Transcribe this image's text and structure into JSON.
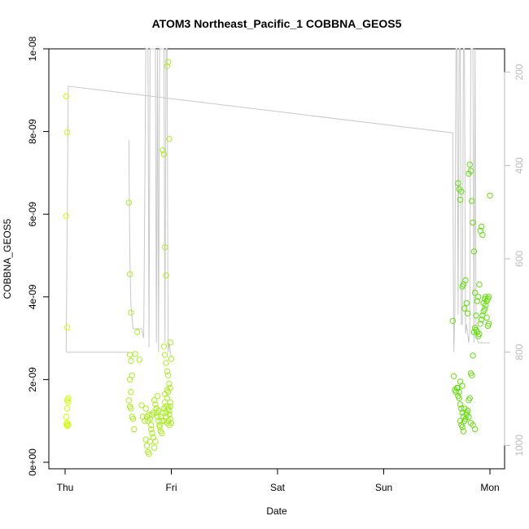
{
  "chart_data": {
    "type": "scatter",
    "title": "ATOM3 Northeast_Pacific_1 COBBNA_GEOS5",
    "xlabel": "Date",
    "ylabel": "COBBNA_GEOS5",
    "x_ticks": [
      "Thu",
      "Fri",
      "Sat",
      "Sun",
      "Mon"
    ],
    "xlim": [
      0,
      4.05
    ],
    "ylim": [
      0,
      1e-08
    ],
    "y_ticks": [
      "0e+00",
      "2e-09",
      "4e-09",
      "6e-09",
      "8e-09",
      "1e-08"
    ],
    "y_tick_values": [
      0,
      2e-09,
      4e-09,
      6e-09,
      8e-09,
      1e-08
    ],
    "right_axis": {
      "ticks": [
        "200",
        "400",
        "600",
        "800",
        "1000"
      ],
      "tick_values": [
        200,
        400,
        600,
        800,
        1000
      ],
      "ylim": [
        1050,
        150
      ],
      "color": "#bdbdbd"
    },
    "line_color": "#c8c8c8",
    "point_colors": [
      "#ccff00",
      "#aaee22",
      "#66dd11"
    ],
    "series": [
      {
        "kind": "points",
        "x": [
          0.01,
          0.02,
          0.01,
          0.02,
          0.03,
          0.02,
          0.03,
          0.02,
          0.01,
          0.02,
          0.03,
          0.02,
          0.01,
          0.6,
          0.61,
          0.62,
          0.61,
          0.62,
          0.63,
          0.61,
          0.62,
          0.6,
          0.61,
          0.62,
          0.63,
          0.64,
          0.65,
          0.66,
          0.68,
          0.7,
          0.72,
          0.73,
          0.75,
          0.76,
          0.77,
          0.78,
          0.79,
          0.8,
          0.81,
          0.82,
          0.83,
          0.84,
          0.85,
          0.86,
          0.87,
          0.88,
          0.89,
          0.9,
          0.91,
          0.92,
          0.93,
          0.94,
          0.95,
          0.96,
          0.97,
          0.98,
          0.99,
          1.0,
          0.93,
          0.94,
          0.95,
          0.96,
          0.97,
          0.98,
          0.99,
          0.92,
          0.93,
          0.94,
          0.95,
          0.96,
          0.97,
          0.98,
          0.99,
          1.0,
          0.93,
          0.95,
          0.97,
          0.99,
          0.96,
          0.98,
          0.94,
          0.96,
          0.95,
          0.97,
          0.98,
          0.99,
          0.91,
          0.9,
          0.89,
          0.88,
          0.87,
          0.86,
          0.85,
          0.84,
          0.83,
          0.82,
          0.81,
          0.8,
          0.79,
          0.78,
          0.77,
          0.76
        ],
        "y": [
          8.85e-09,
          7.98e-09,
          5.96e-09,
          3.26e-09,
          1.55e-09,
          1.5e-09,
          1.45e-09,
          1.3e-09,
          1.1e-09,
          9.5e-10,
          9e-10,
          8.8e-10,
          9.2e-10,
          6.28e-09,
          4.55e-09,
          3.62e-09,
          2.6e-09,
          2.45e-09,
          2.1e-09,
          2e-09,
          1.7e-09,
          1.5e-09,
          1.35e-09,
          1.3e-09,
          1.1e-09,
          1.05e-09,
          8e-10,
          2.62e-09,
          3.15e-09,
          2.48e-09,
          1.38e-09,
          1.1e-09,
          1e-09,
          5.5e-10,
          4e-10,
          2.5e-10,
          2e-10,
          5e-10,
          8e-10,
          1.15e-09,
          1.2e-09,
          1.5e-09,
          1.4e-09,
          1.3e-09,
          1.6e-09,
          1.25e-09,
          9e-10,
          1.1e-09,
          1e-09,
          1.2e-09,
          1.3e-09,
          1.45e-09,
          1.35e-09,
          1.55e-09,
          1.3e-09,
          1.15e-09,
          1.05e-09,
          9.5e-10,
          2.8e-09,
          2.6e-09,
          2.4e-09,
          2.2e-09,
          2.1e-09,
          1.9e-09,
          1.8e-09,
          7.55e-09,
          7.45e-09,
          5.2e-09,
          4.52e-09,
          9.58e-09,
          9.68e-09,
          7.82e-09,
          2.9e-09,
          2.5e-09,
          1e-09,
          1.1e-09,
          1.7e-09,
          1.45e-09,
          9.5e-10,
          9e-10,
          1.65e-09,
          1.75e-09,
          1.2e-09,
          1e-09,
          1.25e-09,
          1.35e-09,
          7e-10,
          7.5e-10,
          8.5e-10,
          1e-09,
          1.1e-09,
          1.2e-09,
          5e-10,
          3.5e-10,
          6e-10,
          7e-10,
          9e-10,
          1.05e-09,
          1.15e-09,
          1e-09,
          1.1e-09,
          1.3e-09
        ]
      },
      {
        "kind": "points",
        "x": [
          3.65,
          3.66,
          3.67,
          3.68,
          3.69,
          3.7,
          3.71,
          3.72,
          3.73,
          3.74,
          3.75,
          3.76,
          3.77,
          3.78,
          3.79,
          3.8,
          3.81,
          3.82,
          3.83,
          3.84,
          3.85,
          3.86,
          3.87,
          3.88,
          3.89,
          3.9,
          3.91,
          3.92,
          3.93,
          3.94,
          3.95,
          3.96,
          3.97,
          3.98,
          3.99,
          4.0,
          3.7,
          3.71,
          3.72,
          3.73,
          3.74,
          3.75,
          3.76,
          3.77,
          3.78,
          3.79,
          3.8,
          3.81,
          3.82,
          3.83,
          3.84,
          3.85,
          3.86,
          3.87,
          3.88,
          3.89,
          3.9,
          3.91,
          3.92,
          3.93,
          3.94,
          3.95,
          3.96,
          3.97,
          3.98,
          3.99,
          3.72,
          3.74,
          3.76,
          3.78,
          3.8,
          3.82,
          3.84,
          3.86,
          3.7,
          3.71,
          3.72,
          3.73,
          3.74,
          3.75
        ],
        "y": [
          3.42e-09,
          2.08e-09,
          1.75e-09,
          1.7e-09,
          1.8e-09,
          1.6e-09,
          1.55e-09,
          1.4e-09,
          1.3e-09,
          1.2e-09,
          1.1e-09,
          1e-09,
          1.05e-09,
          1.15e-09,
          1.25e-09,
          1.5e-09,
          1.55e-09,
          2.15e-09,
          2.1e-09,
          2.58e-09,
          3.15e-09,
          3.25e-09,
          3.55e-09,
          3.9e-09,
          4e-09,
          4.3e-09,
          5.6e-09,
          5.7e-09,
          5.5e-09,
          3.85e-09,
          3.95e-09,
          4e-09,
          3.5e-09,
          3.3e-09,
          3.35e-09,
          6.45e-09,
          6.75e-09,
          6.6e-09,
          6.35e-09,
          6.55e-09,
          4.25e-09,
          4.3e-09,
          3.72e-09,
          4.4e-09,
          3.85e-09,
          3.6e-09,
          6.98e-09,
          7.2e-09,
          7.05e-09,
          6.32e-09,
          5.8e-09,
          5.1e-09,
          4.1e-09,
          3.2e-09,
          3.15e-09,
          3.05e-09,
          3.1e-09,
          3.35e-09,
          3.45e-09,
          3.55e-09,
          3.65e-09,
          3.7e-09,
          3.8e-09,
          3.9e-09,
          3.95e-09,
          4e-09,
          1.95e-09,
          1.85e-09,
          1.3e-09,
          1.2e-09,
          1.1e-09,
          9.5e-10,
          9e-10,
          8e-10,
          1.8e-09,
          1.7e-09,
          1e-09,
          9e-10,
          8.5e-10,
          7.5e-10
        ]
      },
      {
        "kind": "pressure_line",
        "x": [
          0.01,
          0.01,
          0.03,
          3.65,
          3.66,
          3.67,
          3.68,
          3.69,
          3.7,
          3.71,
          3.72,
          3.73,
          3.74,
          3.75,
          3.76,
          3.77,
          3.78,
          3.79,
          3.8,
          3.81,
          3.82,
          3.83,
          3.84,
          3.85,
          3.86,
          3.87,
          3.88,
          3.89,
          3.9,
          3.91,
          3.92,
          3.93,
          3.94,
          3.95,
          3.96,
          3.97,
          3.98,
          3.99,
          4.0
        ],
        "p": [
          800,
          800,
          230,
          330,
          800,
          720,
          150,
          150,
          720,
          150,
          150,
          740,
          740,
          150,
          150,
          760,
          740,
          760,
          780,
          760,
          150,
          150,
          150,
          780,
          150,
          760,
          770,
          780,
          780,
          780,
          780,
          780,
          780,
          780,
          780,
          780,
          780,
          780,
          780
        ]
      },
      {
        "kind": "pressure_line",
        "x": [
          0.01,
          0.6
        ],
        "p": [
          800,
          800
        ]
      },
      {
        "kind": "pressure_line",
        "x": [
          0.6,
          0.61,
          0.62,
          0.64,
          0.72,
          0.74,
          0.76,
          0.77,
          0.78,
          0.79,
          0.8,
          0.81,
          0.82,
          0.83,
          0.84,
          0.85,
          0.86,
          0.87,
          0.88,
          0.89,
          0.9,
          0.91,
          0.92,
          0.93,
          0.94,
          0.95,
          0.96,
          0.97,
          0.98,
          0.99,
          1.0
        ],
        "p": [
          345,
          600,
          700,
          750,
          750,
          770,
          150,
          150,
          150,
          790,
          150,
          150,
          150,
          150,
          150,
          150,
          780,
          150,
          800,
          150,
          150,
          150,
          150,
          150,
          780,
          150,
          150,
          800,
          780,
          800,
          810
        ]
      }
    ]
  }
}
